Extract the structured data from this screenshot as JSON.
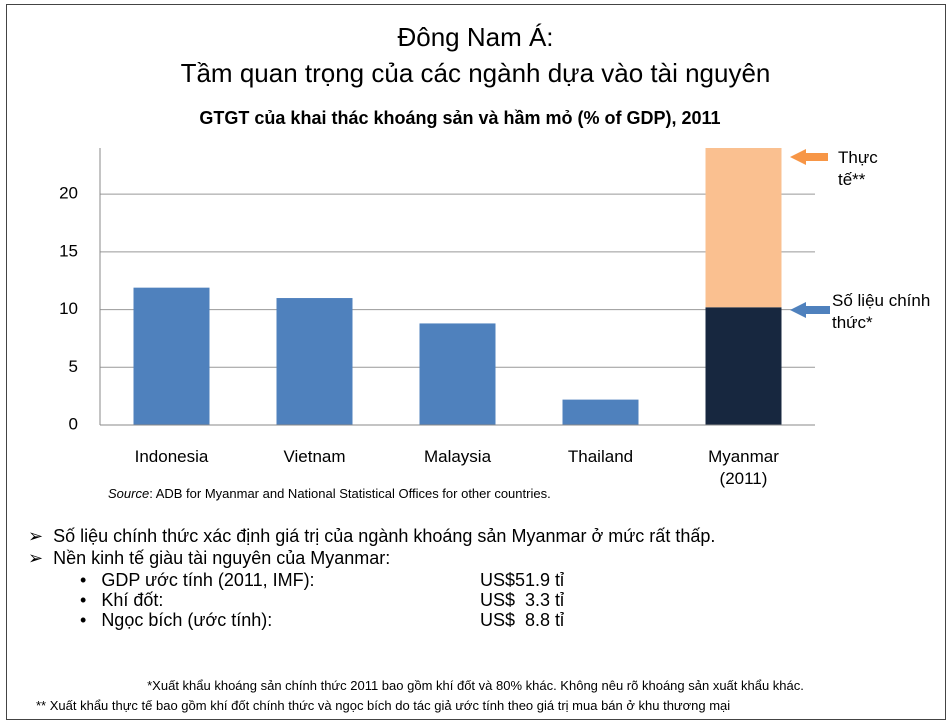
{
  "slide": {
    "title": [
      "Đông Nam Á:",
      "Tầm quan trọng của các ngành dựa vào tài nguyên"
    ],
    "bullets": [
      "Số liệu chính thức xác định giá trị của ngành khoáng sản Myanmar ở mức rất thấp.",
      "Nền kinh tế giàu tài nguyên của Myanmar:"
    ],
    "sub_items": [
      {
        "label": "GDP ước tính (2011, IMF):",
        "value": "US$51.9 tỉ"
      },
      {
        "label": "Khí đốt:",
        "value": "US$  3.3 tỉ"
      },
      {
        "label": "Ngọc bích (ước tính):",
        "value": "US$  8.8 tỉ"
      }
    ],
    "footnotes": [
      "*Xuất khẩu khoáng sản chính thức 2011 bao gồm khí đốt và 80% khác. Không nêu rõ khoáng sản xuất khẩu khác.",
      "** Xuất khẩu thực tế bao gồm khí đốt chính thức và ngọc bích do tác giả ước tính theo giá trị mua bán ở khu thương mại"
    ]
  },
  "chart_data": {
    "type": "bar",
    "title": "GTGT của khai thác khoáng sản và hầm mỏ (% of GDP), 2011",
    "source_label": "Source",
    "source_text": ": ADB for Myanmar and National Statistical Offices for other countries.",
    "categories": [
      "Indonesia",
      "Vietnam",
      "Malaysia",
      "Thailand",
      "Myanmar (2011)"
    ],
    "series": [
      {
        "name": "Số liệu chính thức*",
        "colors": [
          "#4f81bd",
          "#4f81bd",
          "#4f81bd",
          "#4f81bd",
          "#17273f"
        ],
        "values": [
          11.9,
          11.0,
          8.8,
          2.2,
          10.2
        ]
      },
      {
        "name": "Thực tế**",
        "color": "#fac090",
        "values": [
          null,
          null,
          null,
          null,
          13.8
        ]
      }
    ],
    "stacked": true,
    "ylim": [
      0,
      24
    ],
    "yticks": [
      0,
      5,
      10,
      15,
      20
    ],
    "grid": true
  }
}
